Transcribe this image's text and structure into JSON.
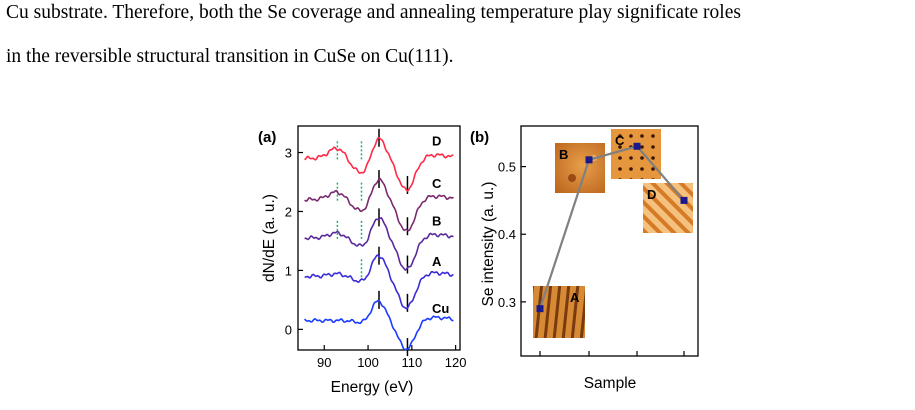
{
  "body_text": {
    "line1": "Cu substrate. Therefore, both the Se coverage and annealing temperature play significate roles",
    "line2": "in the reversible structural transition in CuSe on Cu(111)."
  },
  "chart_data": [
    {
      "type": "line",
      "panel_label": "(a)",
      "xlabel": "Energy (eV)",
      "ylabel": "dN/dE (a. u.)",
      "xlim": [
        84,
        121
      ],
      "ylim": [
        -0.35,
        3.45
      ],
      "xticks": [
        90,
        100,
        110,
        120
      ],
      "yticks": [
        0,
        1,
        2,
        3
      ],
      "grid": false,
      "series": [
        {
          "name": "Cu",
          "color": "#1a3cff",
          "offset": 0.15
        },
        {
          "name": "A",
          "color": "#3a2cd8",
          "offset": 0.9
        },
        {
          "name": "B",
          "color": "#5a2a9c",
          "offset": 1.55
        },
        {
          "name": "C",
          "color": "#7a2a6e",
          "offset": 2.2
        },
        {
          "name": "D",
          "color": "#ff2a46",
          "offset": 2.9
        }
      ],
      "solid_markers_eV": [
        102.5,
        109.0
      ],
      "dotted_markers_eV": [
        93.0,
        98.5
      ]
    },
    {
      "type": "line",
      "panel_label": "(b)",
      "xlabel": "Sample",
      "ylabel": "Se intensity (a. u.)",
      "ylim": [
        0.22,
        0.56
      ],
      "yticks": [
        0.3,
        0.4,
        0.5
      ],
      "grid": false,
      "line_color": "#808080",
      "marker_color": "#1a1a8c",
      "categories": [
        "A",
        "B",
        "C",
        "D"
      ],
      "values": [
        0.29,
        0.51,
        0.53,
        0.45
      ]
    }
  ]
}
